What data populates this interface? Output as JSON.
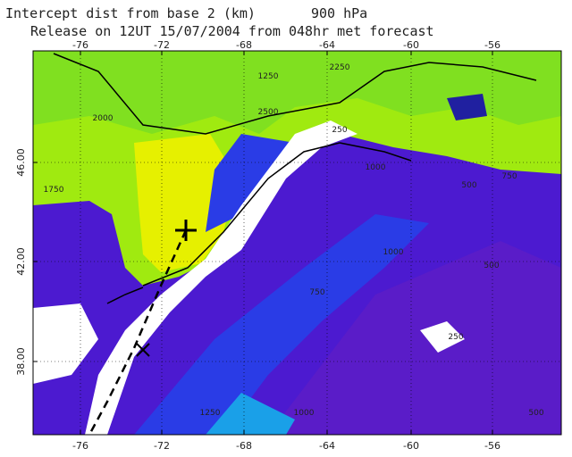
{
  "header": {
    "line1": "Intercept dist from base 2 (km)",
    "level": "900 hPa",
    "line2": "Release on 12UT 15/07/2004 from 048hr met forecast"
  },
  "axes": {
    "top_labels": [
      "-76",
      "-72",
      "-68",
      "-64",
      "-60",
      "-56"
    ],
    "bottom_labels": [
      "-76",
      "-72",
      "-68",
      "-64",
      "-60",
      "-56"
    ],
    "left_labels": [
      "46.00",
      "42.00",
      "38.00"
    ]
  },
  "contour_labels": [
    "2250",
    "2500",
    "2000",
    "1750",
    "1250",
    "250",
    "750",
    "1000",
    "500",
    "1000",
    "750",
    "500",
    "250",
    "1250",
    "1000",
    "500"
  ]
}
